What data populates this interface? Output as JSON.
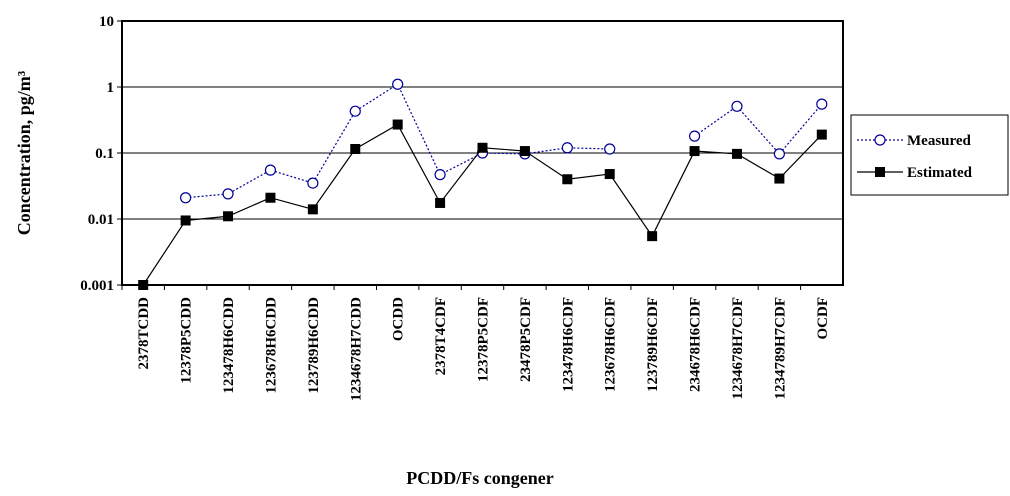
{
  "chart_data": {
    "type": "line",
    "x_label": "PCDD/Fs congener",
    "y_label": "Concentration, pg/m³",
    "categories": [
      "2378TCDD",
      "12378P5CDD",
      "123478H6CDD",
      "123678H6CDD",
      "123789H6CDD",
      "1234678H7CDD",
      "OCDD",
      "2378T4CDF",
      "12378P5CDF",
      "23478P5CDF",
      "123478H6CDF",
      "123678H6CDF",
      "123789H6CDF",
      "234678H6CDF",
      "1234678H7CDF",
      "1234789H7CDF",
      "OCDF"
    ],
    "series": [
      {
        "name": "Measured",
        "color": "#000099",
        "marker": "circle",
        "line": "dotted",
        "values": [
          null,
          0.021,
          0.024,
          0.055,
          0.035,
          0.43,
          1.1,
          0.047,
          0.1,
          0.097,
          0.12,
          0.115,
          null,
          0.18,
          0.51,
          0.097,
          0.55
        ]
      },
      {
        "name": "Estimated",
        "color": "#000000",
        "marker": "square",
        "line": "solid",
        "values": [
          0.001,
          0.0095,
          0.011,
          0.021,
          0.014,
          0.115,
          0.27,
          0.0175,
          0.12,
          0.107,
          0.04,
          0.048,
          0.0055,
          0.107,
          0.097,
          0.041,
          0.19
        ]
      }
    ],
    "log_y": true,
    "ylim": [
      0.001,
      10
    ],
    "yticks": [
      0.001,
      0.01,
      0.1,
      1,
      10
    ],
    "grid": true,
    "legend": "right"
  }
}
